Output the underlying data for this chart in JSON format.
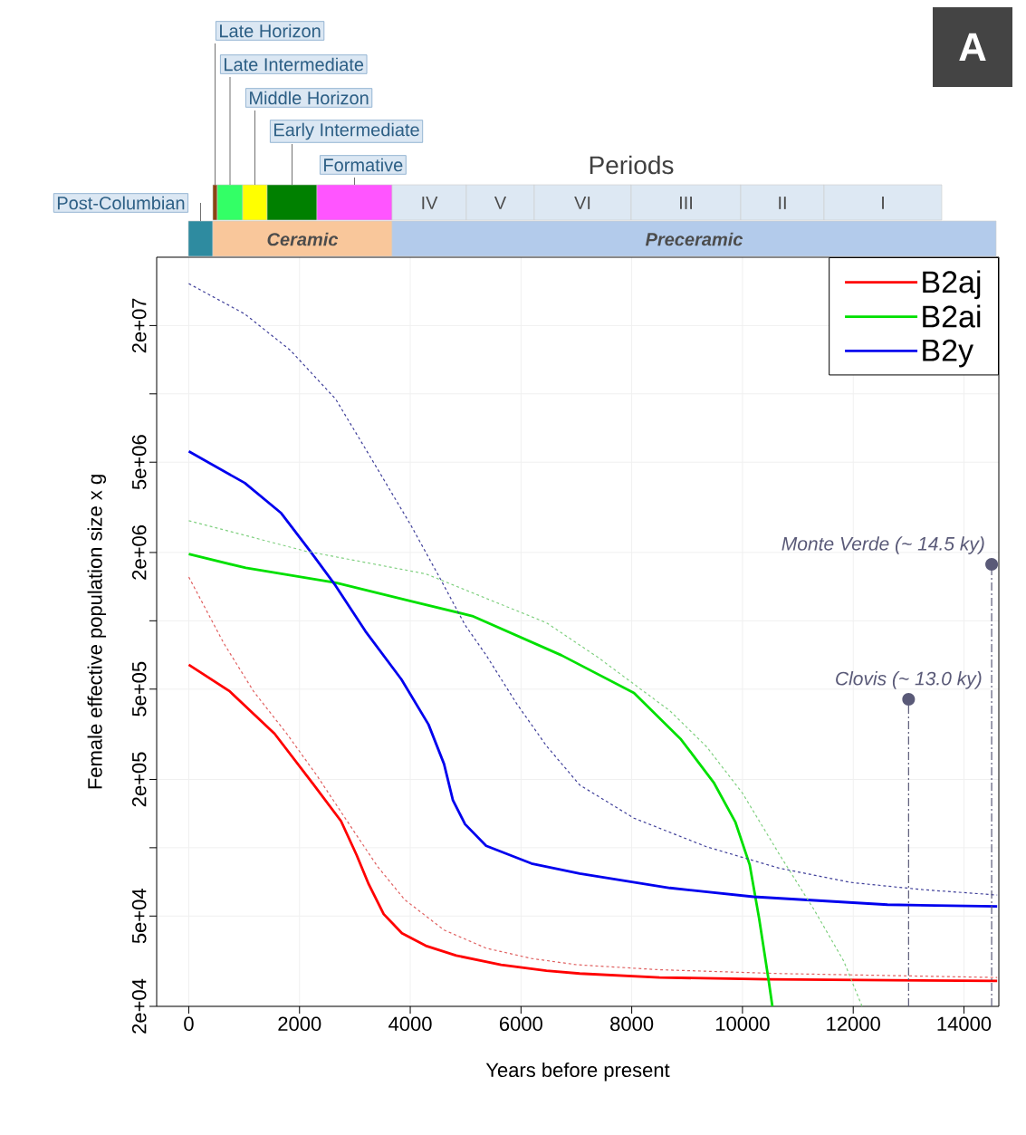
{
  "chart_data": {
    "type": "line",
    "xlabel": "Years before present",
    "ylabel": "Female effective population size x g",
    "annotations": [
      "A",
      "Periods",
      "Post-Columbian",
      "Ceramic",
      "Preceramic",
      "Late Horizon",
      "Late Intermediate",
      "Middle Horizon",
      "Early Intermediate",
      "Formative",
      "IV",
      "V",
      "VI",
      "III",
      "II",
      "I"
    ],
    "xlim": [
      -580,
      14630
    ],
    "ylim": [
      20000,
      40000000
    ],
    "log": true,
    "grid": true,
    "legend": "top right",
    "xticks": [
      0,
      2000,
      4000,
      6000,
      8000,
      10000,
      12000,
      14000
    ],
    "yticks": [
      {
        "value": 20000,
        "label": "2e+04"
      },
      {
        "value": 50000,
        "label": "5e+04"
      },
      {
        "value": 100000,
        "label": null
      },
      {
        "value": 200000,
        "label": "2e+05"
      },
      {
        "value": 500000,
        "label": "5e+05"
      },
      {
        "value": 1000000,
        "label": null
      },
      {
        "value": 2000000,
        "label": "2e+06"
      },
      {
        "value": 5000000,
        "label": "5e+06"
      },
      {
        "value": 10000000,
        "label": null
      },
      {
        "value": 20000000,
        "label": "2e+07"
      }
    ],
    "series": [
      {
        "name": "B2aj",
        "color": "#ff0000",
        "line_style": "solid",
        "x": [
          0,
          740,
          1550,
          2260,
          2750,
          3030,
          3250,
          3520,
          3850,
          4280,
          4830,
          5640,
          6460,
          7060,
          8500,
          10470,
          14600
        ],
        "values": [
          640000,
          489000,
          318000,
          189000,
          131000,
          93000,
          69000,
          51000,
          42000,
          37000,
          33500,
          30500,
          28700,
          27900,
          26800,
          26300,
          25900
        ]
      },
      {
        "name": "B2ai",
        "color": "#00e000",
        "line_style": "solid",
        "x": [
          0,
          1030,
          2660,
          4010,
          5120,
          6730,
          8040,
          8890,
          9480,
          9870,
          10130,
          10300,
          10470,
          10540
        ],
        "values": [
          1970000,
          1710000,
          1470000,
          1220000,
          1050000,
          705000,
          481000,
          300000,
          194000,
          130000,
          84200,
          48900,
          26300,
          20000
        ]
      },
      {
        "name": "B2y",
        "color": "#0000ee",
        "line_style": "solid",
        "x": [
          0,
          1010,
          1670,
          2210,
          2650,
          3190,
          3840,
          4330,
          4610,
          4770,
          4990,
          5370,
          6190,
          7060,
          8690,
          10200,
          12620,
          14600
        ],
        "values": [
          5580000,
          4050000,
          2980000,
          2000000,
          1430000,
          900000,
          552000,
          349000,
          234000,
          162000,
          127000,
          102000,
          85200,
          77000,
          66500,
          60800,
          56100,
          55100
        ]
      },
      {
        "color": "#e06060",
        "line_style": "dashed",
        "x": [
          0,
          630,
          1170,
          1770,
          2320,
          2860,
          3410,
          3900,
          4610,
          5370,
          6190,
          7010,
          8500,
          10660,
          14600
        ],
        "values": [
          1560000,
          798000,
          489000,
          318000,
          207000,
          131000,
          82600,
          59000,
          43400,
          36100,
          32500,
          30500,
          29000,
          27900,
          26800
        ]
      },
      {
        "color": "#80d080",
        "line_style": "dashed",
        "x": [
          0,
          2100,
          4280,
          6460,
          7390,
          8690,
          9350,
          10000,
          10660,
          11310,
          11830,
          12160
        ],
        "values": [
          2760000,
          2030000,
          1610000,
          980000,
          690000,
          401000,
          279000,
          174000,
          94000,
          52500,
          31600,
          20000
        ]
      },
      {
        "color": "#40409a",
        "line_style": "dashed",
        "x": [
          0,
          1010,
          1830,
          2650,
          3300,
          4010,
          4550,
          4990,
          5370,
          5920,
          6460,
          7060,
          8040,
          9350,
          10660,
          11960,
          13270,
          14600
        ],
        "values": [
          30600000,
          22500000,
          15600000,
          9500000,
          5170000,
          2640000,
          1520000,
          958000,
          706000,
          432000,
          281000,
          189000,
          135000,
          101000,
          81300,
          70300,
          65300,
          61900
        ]
      }
    ],
    "ref_lines": [
      {
        "axis": "x",
        "value": 13000,
        "label": "Clovis (~ 13.0 ky)",
        "color": "#5a5a78",
        "line_style": "dashdot"
      },
      {
        "axis": "x",
        "value": 14500,
        "label": "Monte Verde (~ 14.5 ky)",
        "color": "#5a5a78",
        "line_style": "dashdot"
      }
    ]
  }
}
